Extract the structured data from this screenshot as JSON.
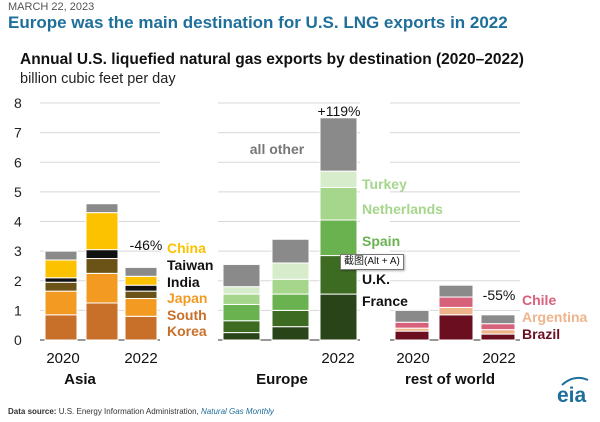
{
  "header": {
    "date": "MARCH 22, 2023",
    "headline": "Europe was the main destination for U.S. LNG exports in 2022"
  },
  "chart_data": {
    "type": "bar",
    "title": "Annual U.S. liquefied natural gas exports by destination (2020–2022)",
    "ylabel": "billion cubic feet per day",
    "ylim": [
      0,
      8
    ],
    "yticks": [
      "0",
      "1",
      "2",
      "3",
      "4",
      "5",
      "6",
      "7",
      "8"
    ],
    "grid": true,
    "stacked": true,
    "groups": [
      {
        "name": "Asia",
        "years": [
          "2020",
          "",
          "2022"
        ],
        "change": "-46%",
        "segments": [
          {
            "name": "South Korea",
            "label": [
              "South",
              "Korea"
            ],
            "color": "#c8702a",
            "values": [
              0.85,
              1.25,
              0.8
            ]
          },
          {
            "name": "Japan",
            "label": [
              "Japan"
            ],
            "color": "#f39a22",
            "values": [
              0.8,
              1.0,
              0.6
            ]
          },
          {
            "name": "India",
            "label": [
              "India"
            ],
            "color": "#6b5217",
            "values": [
              0.3,
              0.5,
              0.25
            ]
          },
          {
            "name": "Taiwan",
            "label": [
              "Taiwan"
            ],
            "color": "#111111",
            "values": [
              0.15,
              0.3,
              0.2
            ]
          },
          {
            "name": "China",
            "label": [
              "China"
            ],
            "color": "#fcc200",
            "values": [
              0.6,
              1.25,
              0.3
            ]
          },
          {
            "name": "all other",
            "label": [],
            "color": "#8a8a8a",
            "values": [
              0.3,
              0.3,
              0.3
            ]
          }
        ]
      },
      {
        "name": "Europe",
        "years": [
          "",
          "",
          "2022"
        ],
        "change": "+119%",
        "segments": [
          {
            "name": "France",
            "label": [
              "France"
            ],
            "color": "#2a4419",
            "values": [
              0.25,
              0.45,
              1.55
            ]
          },
          {
            "name": "U.K.",
            "label": [
              "U.K."
            ],
            "color": "#3e6b22",
            "values": [
              0.4,
              0.55,
              1.3
            ]
          },
          {
            "name": "Spain",
            "label": [
              "Spain"
            ],
            "color": "#6ab24f",
            "values": [
              0.55,
              0.55,
              1.2
            ]
          },
          {
            "name": "Netherlands",
            "label": [
              "Netherlands"
            ],
            "color": "#a6d68c",
            "values": [
              0.35,
              0.5,
              1.1
            ]
          },
          {
            "name": "Turkey",
            "label": [
              "Turkey"
            ],
            "color": "#d7eccb",
            "values": [
              0.25,
              0.55,
              0.55
            ]
          },
          {
            "name": "all other",
            "label": [
              "all other"
            ],
            "color": "#8a8a8a",
            "values": [
              0.75,
              0.8,
              1.8
            ]
          }
        ]
      },
      {
        "name": "rest of world",
        "years": [
          "2020",
          "",
          "2022"
        ],
        "change": "-55%",
        "segments": [
          {
            "name": "Brazil",
            "label": [
              "Brazil"
            ],
            "color": "#6b0e1f",
            "values": [
              0.3,
              0.85,
              0.2
            ]
          },
          {
            "name": "Argentina",
            "label": [
              "Argentina"
            ],
            "color": "#eeb48c",
            "values": [
              0.1,
              0.25,
              0.15
            ]
          },
          {
            "name": "Chile",
            "label": [
              "Chile"
            ],
            "color": "#d7607a",
            "values": [
              0.2,
              0.35,
              0.2
            ]
          },
          {
            "name": "all other",
            "label": [],
            "color": "#8a8a8a",
            "values": [
              0.4,
              0.4,
              0.3
            ]
          }
        ]
      }
    ]
  },
  "tooltip": "截图(Alt + A)",
  "source": {
    "label": "Data source:",
    "text": "U.S. Energy Information Administration,",
    "link": "Natural Gas Monthly"
  },
  "logo": {
    "text": "eia",
    "color": "#1f6f9b"
  }
}
